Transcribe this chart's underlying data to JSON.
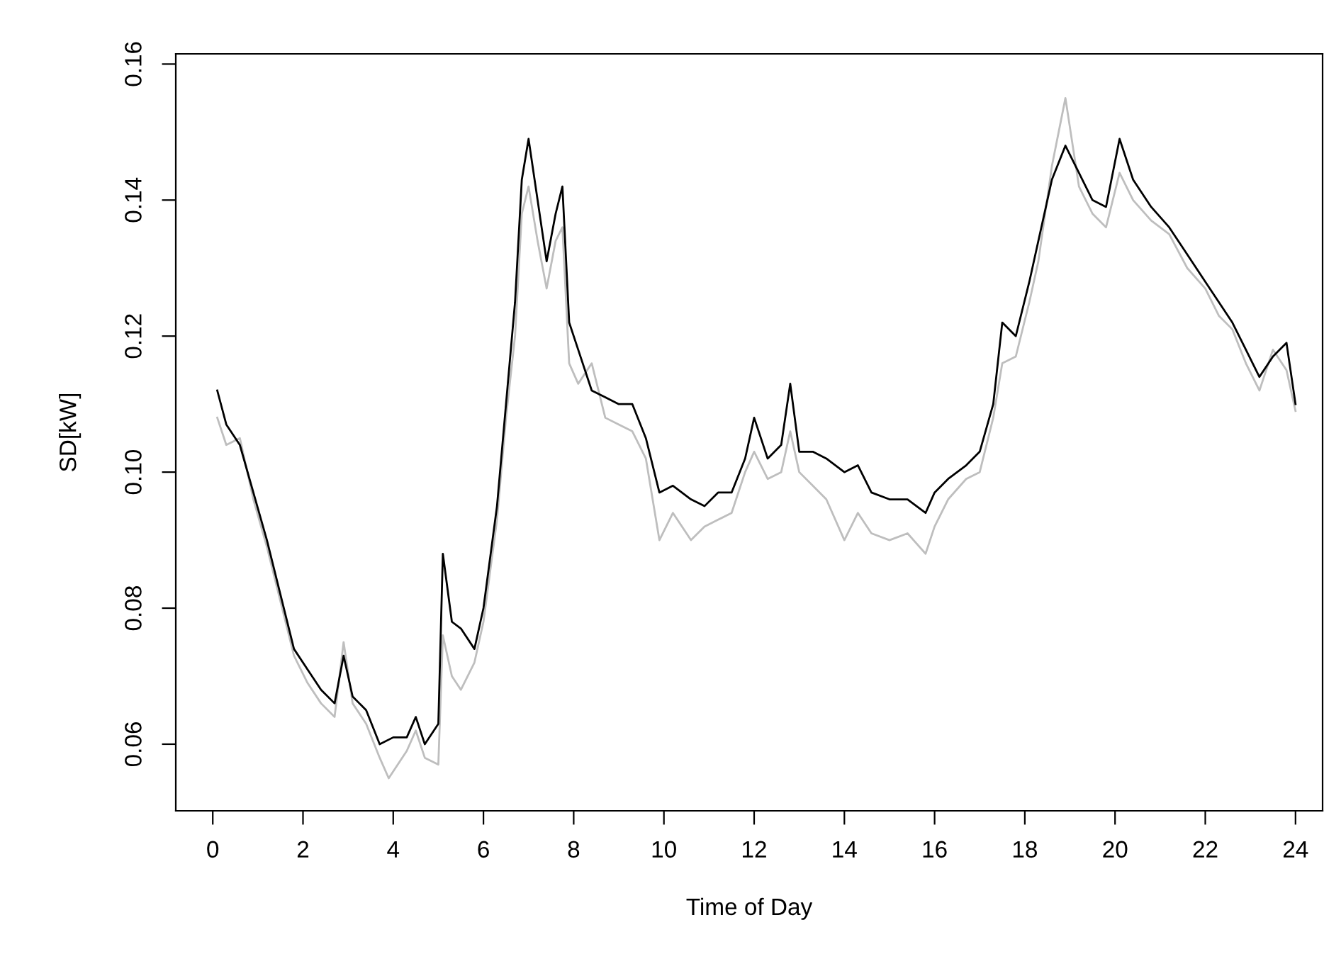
{
  "chart_data": {
    "type": "line",
    "xlabel": "Time of Day",
    "ylabel": "SD[kW]",
    "xlim": [
      -0.82,
      24.6
    ],
    "ylim": [
      0.0502,
      0.1615
    ],
    "xticks": [
      0,
      2,
      4,
      6,
      8,
      10,
      12,
      14,
      16,
      18,
      20,
      22,
      24
    ],
    "yticks": [
      {
        "value": 0.06,
        "label": "0.06"
      },
      {
        "value": 0.08,
        "label": "0.08"
      },
      {
        "value": 0.1,
        "label": "0.10"
      },
      {
        "value": 0.12,
        "label": "0.12"
      },
      {
        "value": 0.14,
        "label": "0.14"
      },
      {
        "value": 0.16,
        "label": "0.16"
      }
    ],
    "marker": "none",
    "line_style": "solid",
    "series": [
      {
        "color": "#bebebe",
        "x": [
          0.1,
          0.3,
          0.6,
          0.9,
          1.2,
          1.5,
          1.8,
          2.1,
          2.4,
          2.7,
          2.9,
          3.1,
          3.4,
          3.7,
          3.9,
          4.3,
          4.5,
          4.7,
          5.0,
          5.1,
          5.3,
          5.5,
          5.8,
          6.0,
          6.3,
          6.5,
          6.7,
          6.85,
          7.0,
          7.2,
          7.4,
          7.6,
          7.75,
          7.9,
          8.1,
          8.4,
          8.7,
          9.0,
          9.3,
          9.6,
          9.9,
          10.2,
          10.6,
          10.9,
          11.2,
          11.5,
          11.8,
          12.0,
          12.3,
          12.6,
          12.8,
          13.0,
          13.3,
          13.6,
          14.0,
          14.3,
          14.6,
          15.0,
          15.4,
          15.8,
          16.0,
          16.3,
          16.7,
          17.0,
          17.3,
          17.5,
          17.8,
          18.1,
          18.3,
          18.6,
          18.9,
          19.2,
          19.5,
          19.8,
          20.1,
          20.4,
          20.8,
          21.2,
          21.6,
          22.0,
          22.3,
          22.6,
          22.9,
          23.2,
          23.5,
          23.8,
          24.0
        ],
        "values": [
          0.108,
          0.104,
          0.105,
          0.096,
          0.089,
          0.081,
          0.073,
          0.069,
          0.066,
          0.064,
          0.075,
          0.066,
          0.063,
          0.058,
          0.055,
          0.059,
          0.062,
          0.058,
          0.057,
          0.076,
          0.07,
          0.068,
          0.072,
          0.078,
          0.093,
          0.108,
          0.12,
          0.138,
          0.142,
          0.134,
          0.127,
          0.134,
          0.136,
          0.116,
          0.113,
          0.116,
          0.108,
          0.107,
          0.106,
          0.102,
          0.09,
          0.094,
          0.09,
          0.092,
          0.093,
          0.094,
          0.1,
          0.103,
          0.099,
          0.1,
          0.106,
          0.1,
          0.098,
          0.096,
          0.09,
          0.094,
          0.091,
          0.09,
          0.091,
          0.088,
          0.092,
          0.096,
          0.099,
          0.1,
          0.108,
          0.116,
          0.117,
          0.125,
          0.131,
          0.145,
          0.155,
          0.142,
          0.138,
          0.136,
          0.144,
          0.14,
          0.137,
          0.135,
          0.13,
          0.127,
          0.123,
          0.121,
          0.116,
          0.112,
          0.118,
          0.115,
          0.109
        ]
      },
      {
        "color": "#000000",
        "x": [
          0.1,
          0.3,
          0.6,
          0.9,
          1.2,
          1.5,
          1.8,
          2.1,
          2.4,
          2.7,
          2.9,
          3.1,
          3.4,
          3.7,
          4.0,
          4.3,
          4.5,
          4.7,
          5.0,
          5.1,
          5.3,
          5.5,
          5.8,
          6.0,
          6.3,
          6.5,
          6.7,
          6.85,
          7.0,
          7.2,
          7.4,
          7.6,
          7.75,
          7.9,
          8.1,
          8.4,
          8.7,
          9.0,
          9.3,
          9.6,
          9.9,
          10.2,
          10.6,
          10.9,
          11.2,
          11.5,
          11.8,
          12.0,
          12.3,
          12.6,
          12.8,
          13.0,
          13.3,
          13.6,
          14.0,
          14.3,
          14.6,
          15.0,
          15.4,
          15.8,
          16.0,
          16.3,
          16.7,
          17.0,
          17.3,
          17.5,
          17.8,
          18.1,
          18.3,
          18.6,
          18.9,
          19.2,
          19.5,
          19.8,
          20.1,
          20.4,
          20.8,
          21.2,
          21.6,
          22.0,
          22.3,
          22.6,
          22.9,
          23.2,
          23.5,
          23.8,
          24.0
        ],
        "values": [
          0.112,
          0.107,
          0.104,
          0.097,
          0.09,
          0.082,
          0.074,
          0.071,
          0.068,
          0.066,
          0.073,
          0.067,
          0.065,
          0.06,
          0.061,
          0.061,
          0.064,
          0.06,
          0.063,
          0.088,
          0.078,
          0.077,
          0.074,
          0.08,
          0.095,
          0.11,
          0.125,
          0.143,
          0.149,
          0.14,
          0.131,
          0.138,
          0.142,
          0.122,
          0.118,
          0.112,
          0.111,
          0.11,
          0.11,
          0.105,
          0.097,
          0.098,
          0.096,
          0.095,
          0.097,
          0.097,
          0.102,
          0.108,
          0.102,
          0.104,
          0.113,
          0.103,
          0.103,
          0.102,
          0.1,
          0.101,
          0.097,
          0.096,
          0.096,
          0.094,
          0.097,
          0.099,
          0.101,
          0.103,
          0.11,
          0.122,
          0.12,
          0.128,
          0.134,
          0.143,
          0.148,
          0.144,
          0.14,
          0.139,
          0.149,
          0.143,
          0.139,
          0.136,
          0.132,
          0.128,
          0.125,
          0.122,
          0.118,
          0.114,
          0.117,
          0.119,
          0.11
        ]
      }
    ]
  }
}
